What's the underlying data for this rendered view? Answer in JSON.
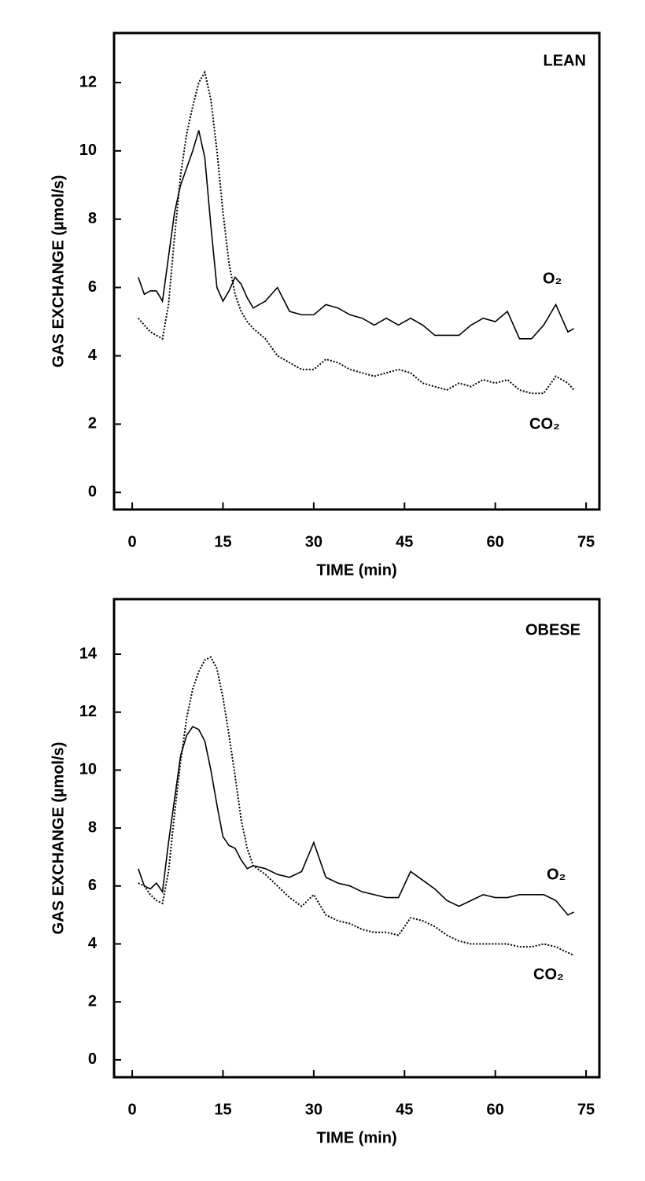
{
  "chart_data": [
    {
      "type": "line",
      "title": "LEAN",
      "x_label": "TIME (min)",
      "y_label": "GAS EXCHANGE (µmol/s)",
      "x": [
        1,
        2,
        3,
        4,
        5,
        6,
        7,
        8,
        9,
        10,
        11,
        12,
        13,
        14,
        15,
        16,
        17,
        18,
        19,
        20,
        22,
        24,
        26,
        28,
        30,
        32,
        34,
        36,
        38,
        40,
        42,
        44,
        46,
        48,
        50,
        52,
        54,
        56,
        58,
        60,
        62,
        64,
        66,
        68,
        70,
        72,
        73
      ],
      "series": [
        {
          "name": "O₂",
          "color": "#000000",
          "line_style": "solid",
          "values": [
            6.3,
            5.8,
            5.9,
            5.9,
            5.6,
            6.9,
            8.2,
            9.0,
            9.5,
            10.0,
            10.6,
            9.8,
            7.8,
            6.0,
            5.6,
            5.9,
            6.3,
            6.1,
            5.7,
            5.4,
            5.6,
            6.0,
            5.3,
            5.2,
            5.2,
            5.5,
            5.4,
            5.2,
            5.1,
            4.9,
            5.1,
            4.9,
            5.1,
            4.9,
            4.6,
            4.6,
            4.6,
            4.9,
            5.1,
            5.0,
            5.3,
            4.5,
            4.5,
            4.9,
            5.5,
            4.7,
            4.8
          ]
        },
        {
          "name": "CO₂",
          "color": "#000000",
          "line_style": "dotted",
          "values": [
            5.1,
            4.9,
            4.7,
            4.6,
            4.5,
            5.5,
            7.5,
            9.3,
            10.5,
            11.3,
            12.0,
            12.3,
            11.5,
            10.0,
            8.2,
            6.7,
            5.8,
            5.3,
            5.0,
            4.8,
            4.5,
            4.0,
            3.8,
            3.6,
            3.6,
            3.9,
            3.8,
            3.6,
            3.5,
            3.4,
            3.5,
            3.6,
            3.5,
            3.2,
            3.1,
            3.0,
            3.2,
            3.1,
            3.3,
            3.2,
            3.3,
            3.0,
            2.9,
            2.9,
            3.4,
            3.2,
            3.0
          ]
        }
      ],
      "xlim": [
        -3,
        77.2
      ],
      "xticks": [
        0,
        15,
        30,
        45,
        60,
        75
      ],
      "ylim": [
        -0.5,
        13.45
      ],
      "yticks": [
        0,
        2,
        4,
        6,
        8,
        10,
        12
      ]
    },
    {
      "type": "line",
      "title": "OBESE",
      "x_label": "TIME (min)",
      "y_label": "GAS EXCHANGE (µmol/s)",
      "x": [
        1,
        2,
        3,
        4,
        5,
        6,
        7,
        8,
        9,
        10,
        11,
        12,
        13,
        14,
        15,
        16,
        17,
        18,
        19,
        20,
        22,
        24,
        26,
        28,
        30,
        32,
        34,
        36,
        38,
        40,
        42,
        44,
        46,
        48,
        50,
        52,
        54,
        56,
        58,
        60,
        62,
        64,
        66,
        68,
        70,
        72,
        73
      ],
      "series": [
        {
          "name": "O₂",
          "color": "#000000",
          "line_style": "solid",
          "values": [
            6.6,
            6.0,
            5.9,
            6.1,
            5.8,
            7.5,
            9.0,
            10.5,
            11.2,
            11.5,
            11.4,
            11.0,
            10.0,
            8.8,
            7.7,
            7.4,
            7.3,
            6.9,
            6.6,
            6.7,
            6.6,
            6.4,
            6.3,
            6.5,
            7.5,
            6.3,
            6.1,
            6.0,
            5.8,
            5.7,
            5.6,
            5.6,
            6.5,
            6.2,
            5.9,
            5.5,
            5.3,
            5.5,
            5.7,
            5.6,
            5.6,
            5.7,
            5.7,
            5.7,
            5.5,
            5.0,
            5.1
          ]
        },
        {
          "name": "CO₂",
          "color": "#000000",
          "line_style": "dotted",
          "values": [
            6.1,
            6.0,
            5.7,
            5.5,
            5.4,
            6.5,
            8.5,
            10.3,
            11.8,
            12.8,
            13.4,
            13.8,
            13.9,
            13.5,
            12.5,
            11.2,
            9.8,
            8.3,
            7.3,
            6.7,
            6.4,
            6.0,
            5.6,
            5.3,
            5.7,
            5.0,
            4.8,
            4.7,
            4.5,
            4.4,
            4.4,
            4.3,
            4.9,
            4.8,
            4.6,
            4.3,
            4.1,
            4.0,
            4.0,
            4.0,
            4.0,
            3.9,
            3.9,
            4.0,
            3.9,
            3.7,
            3.6
          ]
        }
      ],
      "xlim": [
        -3,
        77.2
      ],
      "xticks": [
        0,
        15,
        30,
        45,
        60,
        75
      ],
      "ylim": [
        -0.6,
        15.9
      ],
      "yticks": [
        0,
        2,
        4,
        6,
        8,
        10,
        12,
        14
      ]
    }
  ]
}
